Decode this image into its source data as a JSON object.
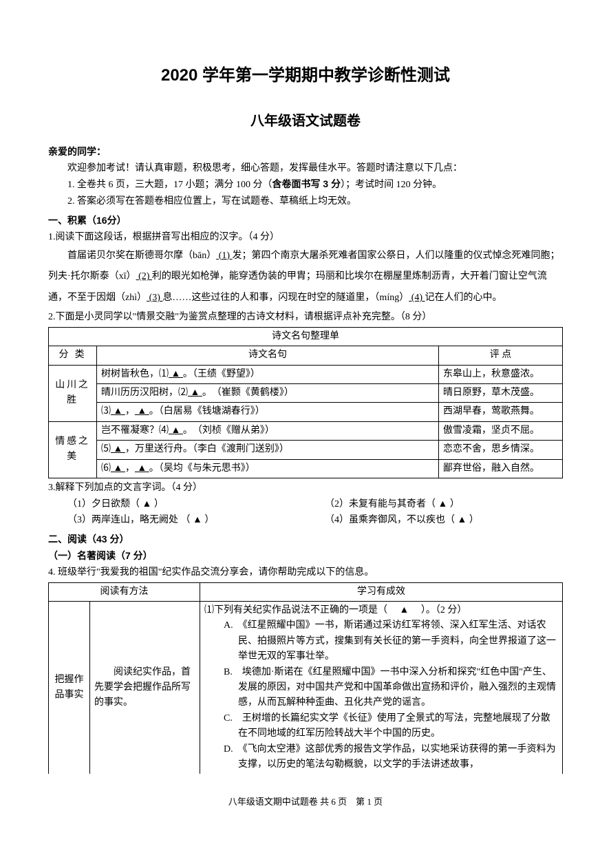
{
  "title_main": "2020 学年第一学期期中教学诊断性测试",
  "title_sub": "八年级语文试题卷",
  "greeting_header": "亲爱的同学：",
  "greeting_line": "欢迎参加考试！请认真审题，积极思考，细心答题，发挥最佳水平。答题时请注意以下几点：",
  "note1_prefix": "1. 全卷共 6 页，三大题，17 小题；满分 100 分（",
  "note1_bold": "含卷面书写 3 分",
  "note1_suffix": "）；考试时间 120 分钟。",
  "note2": "2. 答案必须写在答题卷相应位置上，写在试题卷、草稿纸上均无效。",
  "sec1_header": "一、积累（16分）",
  "q1_stem": "1.阅读下面这段话，根据拼音写出相应的汉字。（4 分）",
  "q1_para_a": "首届诺贝尔奖在斯德哥尔摩（bān）",
  "q1_blank1": "  (1)  ",
  "q1_para_b": "发；第四个南京大屠杀死难者国家公祭日，人们以隆重的仪式悼念死难同胞；列夫·托尔斯泰（xī）",
  "q1_blank2": "  (2)  ",
  "q1_para_c": "利的眼光如枪弹，能穿透伪装的甲胄；玛丽和比埃尔在棚屋里炼制沥青，大开着门窗让空气流通，不至于因烟（zhì）",
  "q1_blank3": "  (3)  ",
  "q1_para_d": "息……这些过往的人和事，闪现在时空的隧道里，（míng）",
  "q1_blank4": "  (4)  ",
  "q1_para_e": "记在人们的心中。",
  "q2_stem": "2.下面是小灵同学以\"情景交融\"为鉴赏点整理的古诗文材料，请根据评点补充完整。（8 分）",
  "table1": {
    "caption": "诗文名句整理单",
    "headers": [
      "分   类",
      "诗文名句",
      "评   点"
    ],
    "cat1": "山川之胜",
    "cat2": "情感之美",
    "r1a": "树树皆秋色，⑴",
    "r1b": "。（王绩《野望》）",
    "r1c": "东皋山上，秋意盛浓。",
    "r2a": "晴川历历汉阳树，⑵",
    "r2b": "。　（崔颢《黄鹤楼》）",
    "r2c": "晴日原野，草木茂盛。",
    "r3a": "⑶",
    "r3b": "，",
    "r3c": "。（白居易《钱塘湖春行》）",
    "r3d": "西湖早春，莺歌燕舞。",
    "r4a": "岂不罹凝寒？⑷",
    "r4b": "。　（刘桢《赠从弟》）",
    "r4c": "傲雪凌霜，坚贞不屈。",
    "r5a": "⑸",
    "r5b": "，万里送行舟。（李白《渡荆门送别》）",
    "r5c": "恋恋不舍，思乡情深。",
    "r6a": "⑹",
    "r6b": "，",
    "r6c": "。（吴均《与朱元思书》）",
    "r6d": "鄙弃世俗，融入自然。",
    "blank_tri": "    ▲    "
  },
  "q3_stem": "3.解释下列加点的文言字词。（4 分）",
  "q3_1": "（1）夕日欲颓（   ▲   ）",
  "q3_2": "（2）未复有能与其奇者（   ▲   ）",
  "q3_3": "（3）两岸连山，略无阙处 （   ▲   ）",
  "q3_4": "（4）虽乘奔御风，不以疾也（   ▲   ）",
  "sec2_header": "二、阅读（43 分）",
  "sec2_sub": "（一）名著阅读（7 分）",
  "q4_stem": "4. 班级举行\"我爱我的祖国\"纪实作品交流分享会，请你帮助完成以下的信息。",
  "table2": {
    "h1": "阅读有方法",
    "h2": "学习有成效",
    "method": "把握作品事实",
    "desc": "　　阅读纪实作品，首先要学会把握作品所写的事实。",
    "q_line": "⑴下列有关纪实作品说法不正确的一项是（　 ▲ 　）。（2 分）",
    "optA": "A.　《红星照耀中国》一书，斯诺通过采访红军将领、深入红军生活、对话农民、拍摄照片等方式，搜集到有关长征的第一手资料，向全世界报道了这一举世无双的军事壮举。",
    "optB": "B.　埃德加·斯诺在《红星照耀中国》一书中深入分析和探究\"红色中国\"产生、发展的原因，对中国共产党和中国革命做出宣扬和评价，融入强烈的主观情感，从而瓦解种种歪曲、丑化共产党的谣言。",
    "optC": "C.　王树增的长篇纪实文学《长征》使用了全景式的写法，完整地展现了分散在不同地域的红军历险转战大半个中国的历史。",
    "optD": "D.　《飞向太空港》这部优秀的报告文学作品，以实地采访获得的第一手资料为支撑，以历史的笔法勾勒概貌，以文学的手法讲述故事，"
  },
  "footer": "八年级语文期中试题卷  共 6 页　第 1 页"
}
